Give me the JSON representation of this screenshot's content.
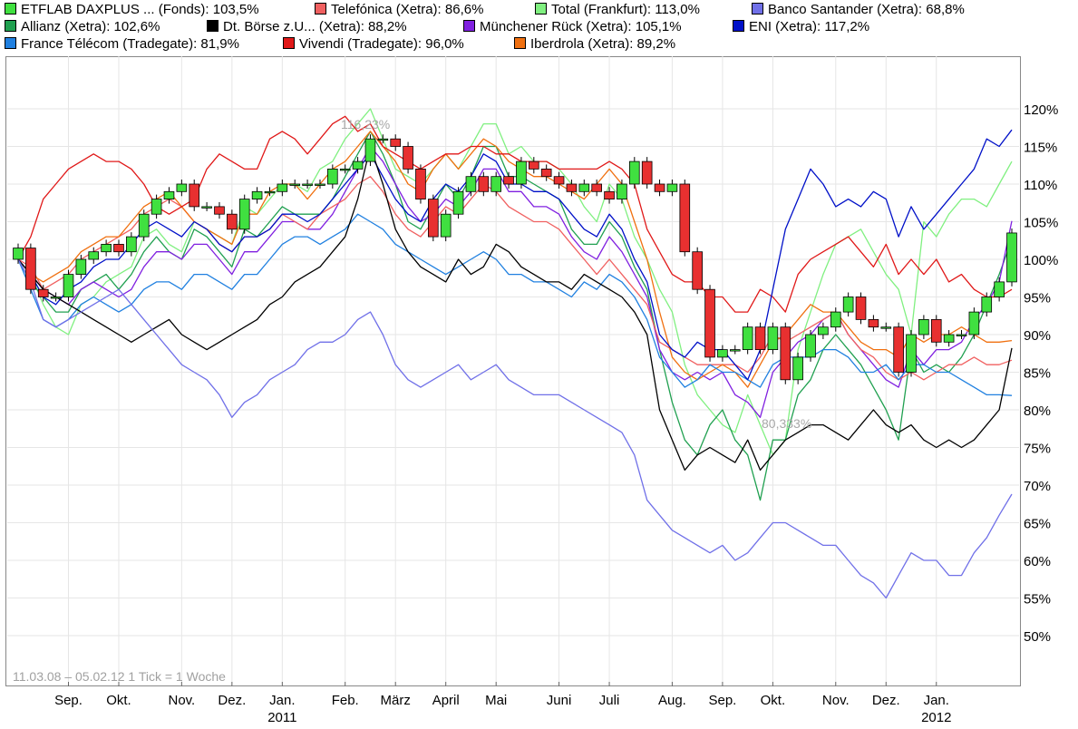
{
  "legend": [
    {
      "label": "ETFLAB DAXPLUS ... (Fonds): 103,5%",
      "color": "#40e040"
    },
    {
      "label": "Telefónica (Xetra): 86,6%",
      "color": "#f06060"
    },
    {
      "label": "Total (Frankfurt): 113,0%",
      "color": "#80f080"
    },
    {
      "label": "Banco Santander (Xetra): 68,8%",
      "color": "#7070e8"
    },
    {
      "label": "Allianz (Xetra): 102,6%",
      "color": "#20a050"
    },
    {
      "label": "Dt. Börse z.U... (Xetra): 88,2%",
      "color": "#000000"
    },
    {
      "label": "Münchener Rück (Xetra): 105,1%",
      "color": "#8020e0"
    },
    {
      "label": "ENI (Xetra): 117,2%",
      "color": "#0010c8"
    },
    {
      "label": "France Télécom (Tradegate): 81,9%",
      "color": "#2080e0"
    },
    {
      "label": "Vivendi (Tradegate): 96,0%",
      "color": "#e01818"
    },
    {
      "label": "Iberdrola (Xetra): 89,2%",
      "color": "#f07010"
    }
  ],
  "footer_note": "11.03.08 – 05.02.12   1 Tick = 1 Woche",
  "annotations": {
    "max": "116,23%",
    "min": "80,333%"
  },
  "chart_data": {
    "type": "line",
    "title": "",
    "ylim": [
      45,
      123
    ],
    "y_ticks": [
      50,
      55,
      60,
      65,
      70,
      75,
      80,
      85,
      90,
      95,
      100,
      105,
      110,
      115,
      120
    ],
    "y_tick_labels": [
      "50%",
      "55%",
      "60%",
      "65%",
      "70%",
      "75%",
      "80%",
      "85%",
      "90%",
      "95%",
      "100%",
      "105%",
      "110%",
      "115%",
      "120%"
    ],
    "x_weeks": 79,
    "x_ticks": [
      {
        "label": "Sep.",
        "week": 4
      },
      {
        "label": "Okt.",
        "week": 8
      },
      {
        "label": "Nov.",
        "week": 13
      },
      {
        "label": "Dez.",
        "week": 17
      },
      {
        "label": "Jan.",
        "week": 21
      },
      {
        "label": "Feb.",
        "week": 26
      },
      {
        "label": "März",
        "week": 30
      },
      {
        "label": "April",
        "week": 34
      },
      {
        "label": "Mai",
        "week": 38
      },
      {
        "label": "Juni",
        "week": 43
      },
      {
        "label": "Juli",
        "week": 47
      },
      {
        "label": "Aug.",
        "week": 52
      },
      {
        "label": "Sep.",
        "week": 56
      },
      {
        "label": "Okt.",
        "week": 60
      },
      {
        "label": "Nov.",
        "week": 65
      },
      {
        "label": "Dez.",
        "week": 69
      },
      {
        "label": "Jan.",
        "week": 73
      }
    ],
    "x_year_labels": [
      {
        "label": "2011",
        "week": 21
      },
      {
        "label": "2012",
        "week": 73
      }
    ],
    "candles": {
      "name": "ETFLAB DAXPLUS ... (Fonds)",
      "open": [
        100,
        101.5,
        96,
        95,
        95,
        98,
        100,
        101,
        102,
        101,
        103,
        106,
        108,
        109,
        110,
        107,
        107,
        106,
        104,
        108,
        109,
        109,
        110,
        110,
        110,
        110,
        112,
        112,
        113,
        116,
        116,
        115,
        112,
        108,
        103,
        106,
        109,
        111,
        109,
        111,
        110,
        113,
        112,
        111,
        110,
        109,
        110,
        109,
        108,
        110,
        113,
        110,
        109,
        110,
        101,
        96,
        87,
        88,
        88,
        91,
        88,
        91,
        84,
        87,
        90,
        91,
        93,
        95,
        92,
        91,
        91,
        85,
        90,
        92,
        89,
        90,
        90,
        93,
        95,
        97
      ],
      "close": [
        101.5,
        96,
        95,
        95,
        98,
        100,
        101,
        102,
        101,
        103,
        106,
        108,
        109,
        110,
        107,
        107,
        106,
        104,
        108,
        109,
        109,
        110,
        110,
        110,
        110,
        112,
        112,
        113,
        116,
        116,
        115,
        112,
        108,
        103,
        106,
        109,
        111,
        109,
        111,
        110,
        113,
        112,
        111,
        110,
        109,
        110,
        109,
        108,
        110,
        113,
        110,
        109,
        110,
        101,
        96,
        87,
        88,
        88,
        91,
        88,
        91,
        84,
        87,
        90,
        91,
        93,
        95,
        92,
        91,
        91,
        85,
        90,
        92,
        89,
        90,
        90,
        93,
        95,
        97,
        103.5
      ]
    },
    "series": [
      {
        "name": "Total (Frankfurt)",
        "color": "#80f080",
        "values": [
          100,
          98,
          94,
          91,
          90,
          94,
          95,
          97,
          98,
          99,
          103,
          104,
          102,
          101,
          105,
          104,
          103,
          102,
          107,
          106,
          108,
          110,
          110,
          109,
          112,
          113,
          116,
          118,
          120,
          116,
          112,
          111,
          110,
          112,
          114,
          112,
          115,
          118,
          118,
          114,
          115,
          113,
          113,
          112,
          110,
          107,
          105,
          110,
          108,
          103,
          100,
          96,
          93,
          86,
          82,
          80,
          78,
          77,
          82,
          78,
          74,
          76,
          88,
          93,
          98,
          102,
          103,
          104,
          101,
          98,
          96,
          90,
          105,
          103,
          106,
          108,
          108,
          107,
          110,
          113
        ]
      },
      {
        "name": "Allianz (Xetra)",
        "color": "#20a050",
        "values": [
          100,
          97,
          95,
          93,
          93,
          96,
          97,
          98,
          96,
          98,
          101,
          103,
          101,
          100,
          104,
          103,
          101,
          99,
          104,
          103,
          105,
          107,
          106,
          106,
          106,
          108,
          111,
          114,
          117,
          114,
          110,
          105,
          104,
          107,
          110,
          108,
          111,
          115,
          115,
          111,
          111,
          110,
          109,
          108,
          104,
          102,
          102,
          105,
          103,
          99,
          96,
          88,
          81,
          76,
          74,
          78,
          80,
          76,
          74,
          68,
          76,
          76,
          82,
          84,
          88,
          90,
          88,
          86,
          83,
          80,
          76,
          88,
          85,
          86,
          85,
          87,
          90,
          94,
          98,
          102.6
        ]
      },
      {
        "name": "Münchener Rück (Xetra)",
        "color": "#8020e0",
        "values": [
          100,
          98,
          96,
          95,
          94,
          96,
          97,
          96,
          95,
          96,
          99,
          101,
          101,
          100,
          102,
          102,
          100,
          98,
          101,
          101,
          103,
          105,
          105,
          104,
          104,
          106,
          109,
          112,
          115,
          113,
          110,
          107,
          105,
          106,
          108,
          107,
          109,
          112,
          112,
          109,
          109,
          107,
          107,
          106,
          103,
          101,
          100,
          103,
          101,
          98,
          95,
          88,
          85,
          84,
          85,
          84,
          85,
          82,
          81,
          79,
          85,
          87,
          89,
          90,
          92,
          93,
          90,
          88,
          86,
          84,
          83,
          88,
          86,
          88,
          88,
          89,
          92,
          94,
          97,
          105.1
        ]
      },
      {
        "name": "Telefónica (Xetra)",
        "color": "#f06060",
        "values": [
          100,
          99,
          96,
          97,
          98,
          100,
          101,
          102,
          103,
          104,
          106,
          107,
          108,
          107,
          105,
          104,
          102,
          101,
          103,
          103,
          104,
          106,
          105,
          104,
          106,
          107,
          108,
          110,
          111,
          109,
          106,
          104,
          103,
          105,
          107,
          106,
          108,
          110,
          109,
          107,
          106,
          105,
          105,
          104,
          102,
          100,
          98,
          100,
          98,
          96,
          94,
          89,
          88,
          87,
          86,
          86,
          86,
          86,
          85,
          87,
          90,
          89,
          90,
          91,
          92,
          93,
          90,
          88,
          87,
          85,
          84,
          85,
          84,
          85,
          86,
          86,
          87,
          86,
          86,
          86.6
        ]
      },
      {
        "name": "Iberdrola (Xetra)",
        "color": "#f07010",
        "values": [
          100,
          98,
          97,
          98,
          99,
          101,
          102,
          103,
          103,
          105,
          107,
          108,
          109,
          107,
          105,
          104,
          103,
          102,
          106,
          106,
          109,
          110,
          110,
          108,
          110,
          112,
          113,
          115,
          117,
          115,
          113,
          110,
          109,
          112,
          114,
          112,
          114,
          116,
          115,
          113,
          112,
          111,
          111,
          110,
          109,
          108,
          110,
          112,
          110,
          105,
          100,
          93,
          87,
          85,
          84,
          85,
          86,
          85,
          83,
          86,
          89,
          90,
          92,
          94,
          93,
          93,
          91,
          89,
          88,
          88,
          87,
          90,
          89,
          90,
          90,
          91,
          90,
          89,
          89,
          89.2
        ]
      },
      {
        "name": "France Télécom (Tradegate)",
        "color": "#2080e0",
        "values": [
          100,
          96,
          92,
          91,
          92,
          94,
          95,
          94,
          93,
          94,
          96,
          97,
          97,
          96,
          98,
          98,
          97,
          96,
          98,
          98,
          100,
          102,
          103,
          103,
          102,
          103,
          104,
          106,
          105,
          104,
          102,
          101,
          100,
          99,
          98,
          99,
          100,
          101,
          100,
          98,
          98,
          97,
          97,
          96,
          95,
          97,
          96,
          98,
          97,
          95,
          92,
          87,
          85,
          83,
          84,
          86,
          85,
          85,
          84,
          83,
          86,
          87,
          87,
          87,
          88,
          88,
          87,
          85,
          85,
          86,
          84,
          86,
          86,
          85,
          85,
          84,
          83,
          82,
          82,
          81.9
        ]
      },
      {
        "name": "Vivendi (Tradegate)",
        "color": "#e01818",
        "values": [
          100,
          103,
          108,
          110,
          112,
          113,
          114,
          113,
          113,
          112,
          110,
          107,
          106,
          107,
          108,
          112,
          114,
          113,
          112,
          112,
          116,
          117,
          116,
          114,
          116,
          118,
          119,
          117,
          118,
          115,
          114,
          113,
          112,
          113,
          114,
          114,
          115,
          115,
          114,
          114,
          113,
          113,
          113,
          112,
          112,
          112,
          112,
          113,
          112,
          110,
          104,
          101,
          98,
          97,
          97,
          95,
          95,
          93,
          93,
          96,
          95,
          93,
          98,
          100,
          101,
          102,
          103,
          101,
          99,
          102,
          98,
          100,
          98,
          100,
          97,
          98,
          96,
          95,
          95,
          96
        ]
      },
      {
        "name": "ENI (Xetra)",
        "color": "#0010c8",
        "values": [
          100,
          98,
          95,
          94,
          96,
          97,
          99,
          100,
          100,
          102,
          104,
          105,
          104,
          103,
          105,
          104,
          102,
          101,
          103,
          103,
          104,
          106,
          106,
          105,
          106,
          108,
          110,
          112,
          114,
          111,
          108,
          106,
          105,
          108,
          110,
          109,
          111,
          114,
          113,
          110,
          110,
          109,
          109,
          108,
          106,
          104,
          103,
          106,
          104,
          100,
          97,
          90,
          88,
          87,
          89,
          88,
          88,
          86,
          84,
          88,
          96,
          104,
          108,
          112,
          110,
          107,
          108,
          107,
          109,
          108,
          103,
          107,
          104,
          106,
          108,
          110,
          112,
          116,
          115,
          117.2
        ]
      },
      {
        "name": "Dt. Börse z.U... (Xetra)",
        "color": "#000000",
        "values": [
          100,
          98,
          96,
          95,
          94,
          93,
          92,
          91,
          90,
          89,
          90,
          91,
          92,
          90,
          89,
          88,
          89,
          90,
          91,
          92,
          94,
          95,
          97,
          98,
          99,
          101,
          103,
          108,
          115,
          110,
          104,
          101,
          99,
          98,
          97,
          100,
          98,
          99,
          102,
          101,
          99,
          98,
          97,
          97,
          96,
          98,
          97,
          96,
          95,
          93,
          90,
          80,
          76,
          72,
          74,
          75,
          74,
          73,
          76,
          72,
          74,
          76,
          77,
          78,
          78,
          77,
          76,
          78,
          80,
          78,
          77,
          78,
          76,
          75,
          76,
          75,
          76,
          78,
          80,
          88.2
        ]
      },
      {
        "name": "Banco Santander (Xetra)",
        "color": "#7070e8",
        "values": [
          100,
          97,
          92,
          91,
          92,
          93,
          94,
          95,
          96,
          94,
          92,
          90,
          88,
          86,
          85,
          84,
          82,
          79,
          81,
          82,
          84,
          85,
          86,
          88,
          89,
          89,
          90,
          92,
          93,
          90,
          86,
          84,
          83,
          84,
          85,
          86,
          84,
          85,
          86,
          84,
          83,
          82,
          82,
          82,
          81,
          80,
          79,
          78,
          77,
          74,
          68,
          66,
          64,
          63,
          62,
          61,
          62,
          60,
          61,
          63,
          65,
          65,
          64,
          63,
          62,
          62,
          60,
          58,
          57,
          55,
          58,
          61,
          60,
          60,
          58,
          58,
          61,
          63,
          66,
          68.8
        ]
      }
    ]
  }
}
